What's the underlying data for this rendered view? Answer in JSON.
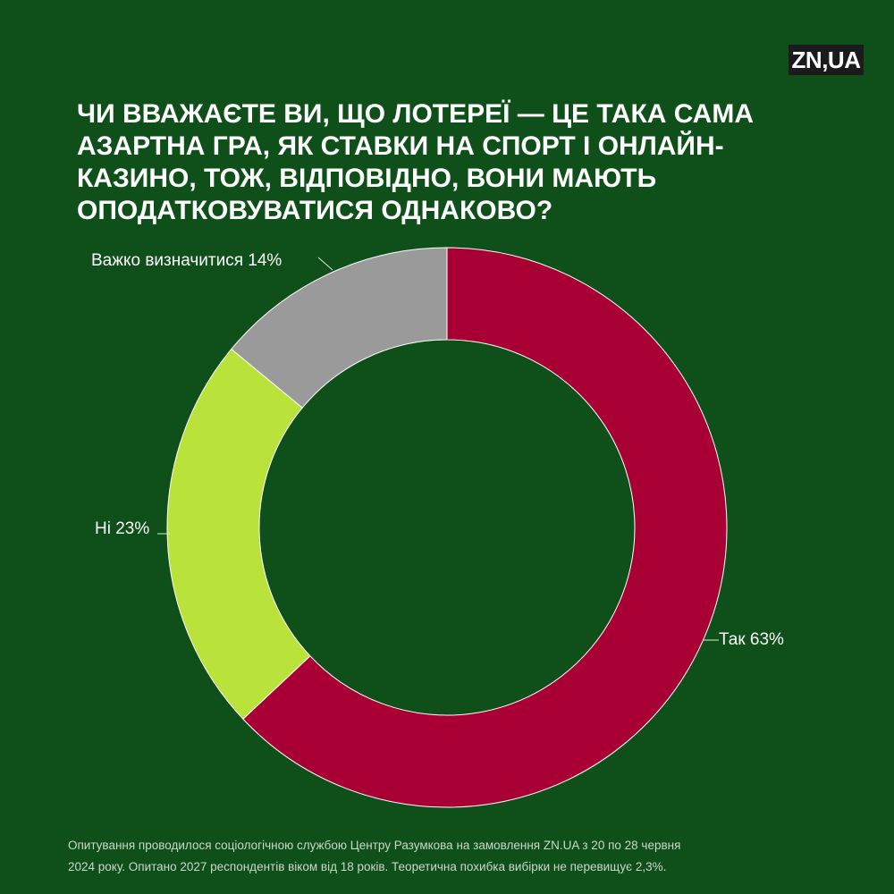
{
  "brand": {
    "logo_text": "ZN,UA"
  },
  "colors": {
    "background": "#0f4f1a",
    "yes": "#a80035",
    "no": "#b9e33a",
    "hard": "#9a9a9a"
  },
  "footnote": {
    "line1": "Опитування проводилося соціологічною службою Центру Разумкова на замовлення ZN.UA з 20 по 28 червня",
    "line2": "2024 року. Опитано 2027 респондентів віком від 18 років. Теоретична похибка вибірки не перевищує 2,3%."
  },
  "chart_data": {
    "type": "pie",
    "style": "donut",
    "title": "ЧИ ВВАЖАЄТЕ ВИ, ЩО ЛОТЕРЕЇ — ЦЕ ТАКА САМА АЗАРТНА ГРА, ЯК СТАВКИ НА СПОРТ І ОНЛАЙН-КАЗИНО, ТОЖ, ВІДПОВІДНО, ВОНИ МАЮТЬ ОПОДАТКОВУВАТИСЯ ОДНАКОВО?",
    "start": "top",
    "direction": "clockwise",
    "slices": [
      {
        "label": "Так",
        "value": 63,
        "display": "Так 63%",
        "color": "#a80035"
      },
      {
        "label": "Ні",
        "value": 23,
        "display": "Ні 23%",
        "color": "#b9e33a"
      },
      {
        "label": "Важко визначитися",
        "value": 14,
        "display": "Важко визначитися 14%",
        "color": "#9a9a9a"
      }
    ]
  }
}
